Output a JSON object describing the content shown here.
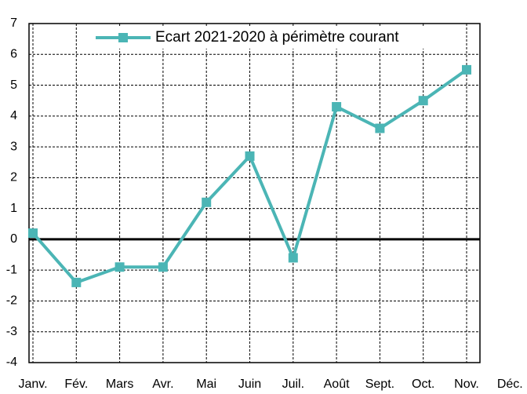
{
  "chart_data": {
    "type": "line",
    "categories": [
      "Janv.",
      "Fév.",
      "Mars",
      "Avr.",
      "Mai",
      "Juin",
      "Juil.",
      "Août",
      "Sept.",
      "Oct.",
      "Nov.",
      "Déc."
    ],
    "series": [
      {
        "name": "Ecart 2021-2020 à périmètre courant",
        "color": "#4bb5b5",
        "values": [
          0.2,
          -1.4,
          -0.9,
          -0.9,
          1.2,
          2.7,
          -0.6,
          4.3,
          3.6,
          4.5,
          5.5,
          null
        ]
      }
    ],
    "ylim": [
      -4,
      7
    ],
    "yticks": [
      -4,
      -3,
      -2,
      -1,
      0,
      1,
      2,
      3,
      4,
      5,
      6,
      7
    ],
    "grid": true,
    "legend": "top"
  }
}
